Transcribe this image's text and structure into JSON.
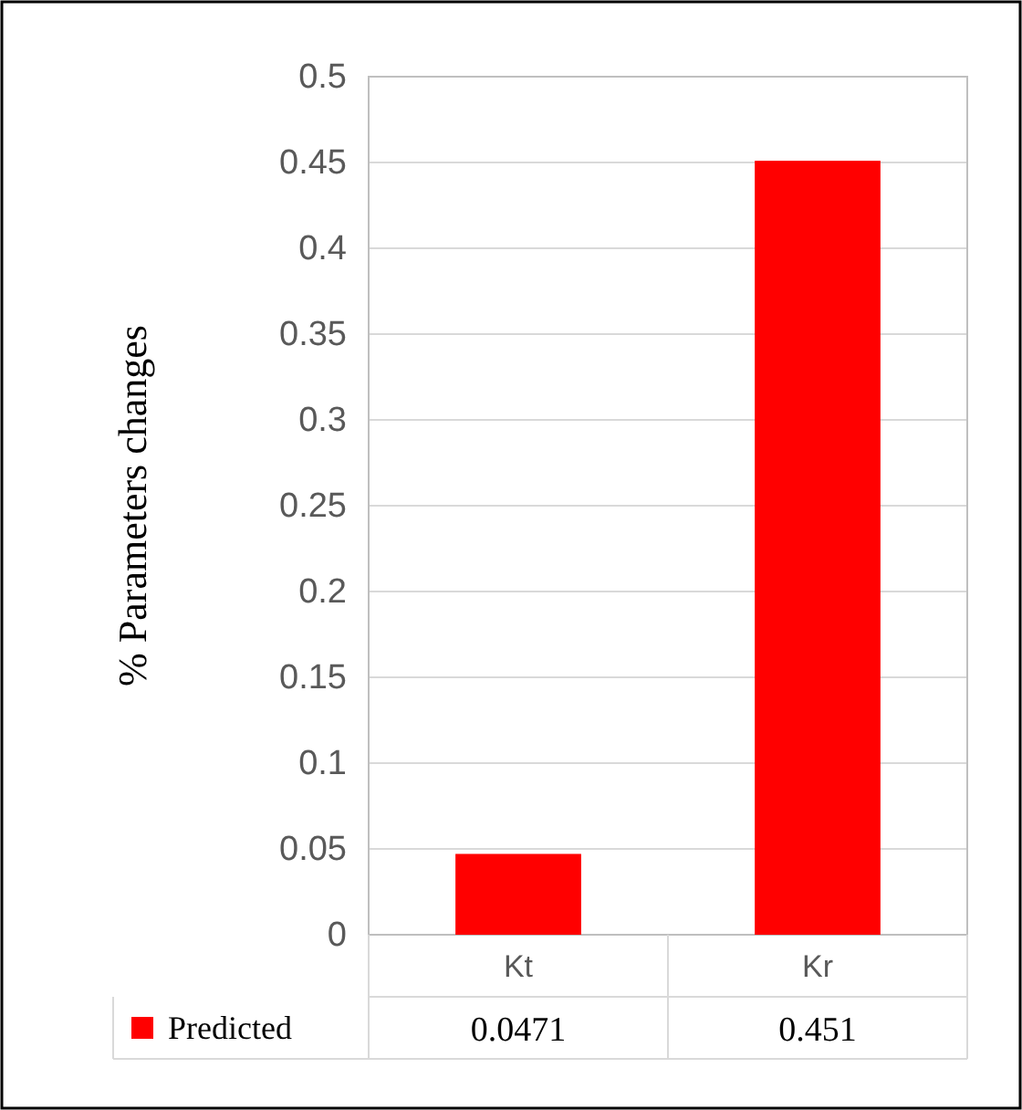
{
  "chart_data": {
    "type": "bar",
    "ylabel": "% Parameters changes",
    "categories": [
      "Kt",
      "Kr"
    ],
    "series": [
      {
        "name": "Predicted",
        "color": "#ff0000",
        "values": [
          0.0471,
          0.451
        ]
      }
    ],
    "ylim": [
      0,
      0.5
    ],
    "yticks": [
      0,
      0.05,
      0.1,
      0.15,
      0.2,
      0.25,
      0.3,
      0.35,
      0.4,
      0.45,
      0.5
    ],
    "grid": "y",
    "data_labels": true,
    "legend": "bottom"
  }
}
